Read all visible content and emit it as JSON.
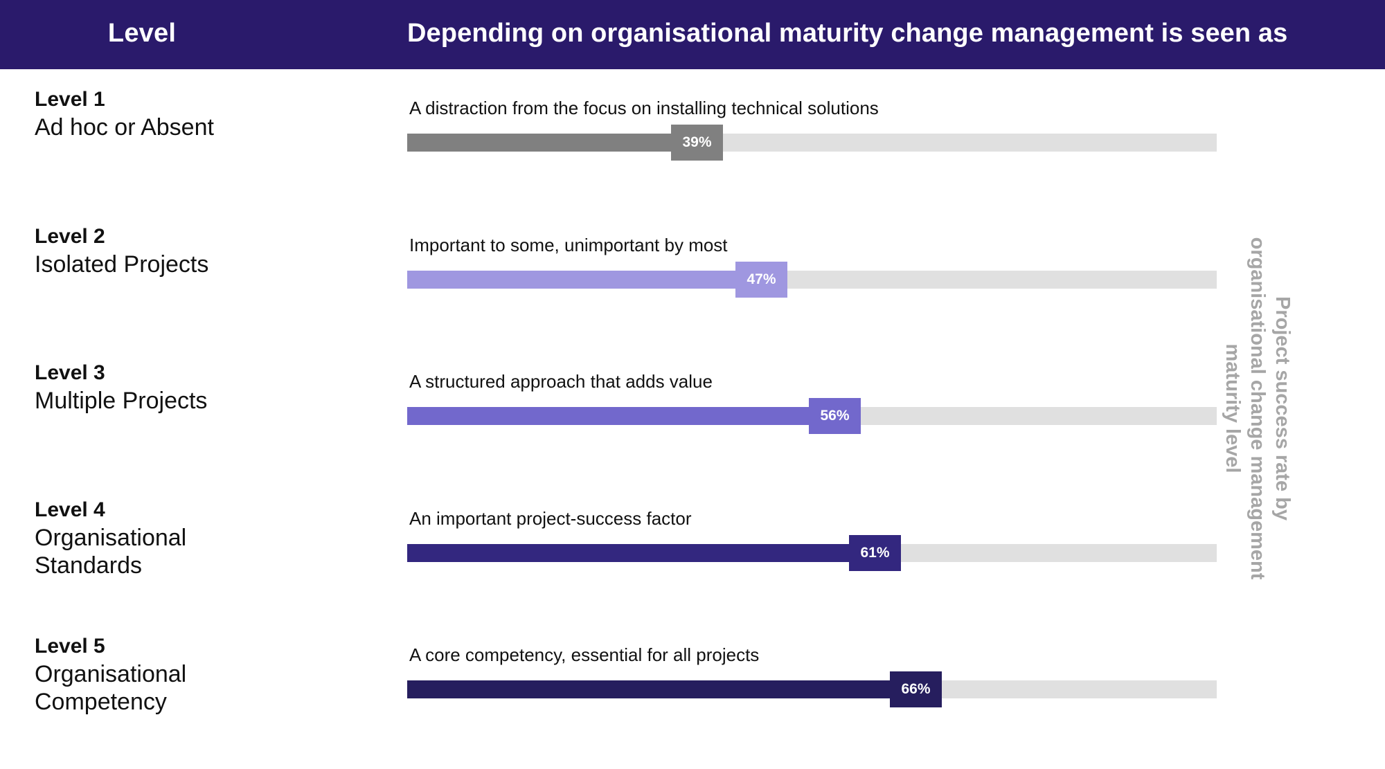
{
  "header": {
    "level_label": "Level",
    "title": "Depending on organisational maturity change management is seen as"
  },
  "side_label": "Project success rate by organisational change management maturity level",
  "colors": {
    "header_bg": "#2a1a6b",
    "track": "#e0e0e0",
    "side_label": "#a6a6a6"
  },
  "chart_data": {
    "type": "bar",
    "orientation": "horizontal",
    "categories": [
      "Level 1",
      "Level 2",
      "Level 3",
      "Level 4",
      "Level 5"
    ],
    "values": [
      39,
      47,
      56,
      61,
      66
    ],
    "unit": "%",
    "xlim": [
      0,
      100
    ],
    "title": "Depending on organisational maturity change management is seen as",
    "ylabel": "Level",
    "annotation": "Project success rate by organisational change management maturity level",
    "rows": [
      {
        "level": "Level 1",
        "name": "Ad hoc or Absent",
        "description": "A distraction from the focus on installing technical solutions",
        "value": 39,
        "label": "39%",
        "color": "#808080"
      },
      {
        "level": "Level 2",
        "name": "Isolated Projects",
        "description": "Important to some, unimportant by most",
        "value": 47,
        "label": "47%",
        "color": "#9f97e0"
      },
      {
        "level": "Level 3",
        "name": "Multiple Projects",
        "description": "A structured approach that adds value",
        "value": 56,
        "label": "56%",
        "color": "#7268cc"
      },
      {
        "level": "Level 4",
        "name": "Organisational Standards",
        "description": "An important project-success factor",
        "value": 61,
        "label": "61%",
        "color": "#33277f"
      },
      {
        "level": "Level 5",
        "name": "Organisational Competency",
        "description": "A core competency, essential for all projects",
        "value": 66,
        "label": "66%",
        "color": "#261e5e"
      }
    ]
  }
}
